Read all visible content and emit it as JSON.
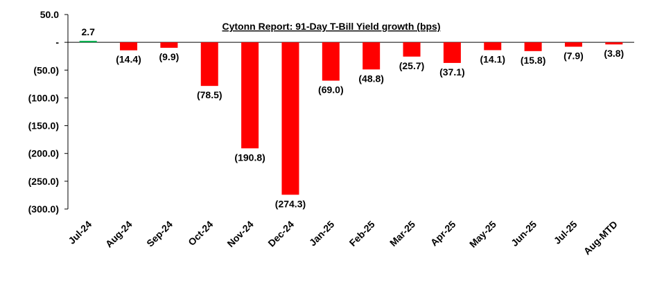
{
  "chart_data": {
    "type": "bar",
    "title": "Cytonn Report:  91-Day T-Bill Yield growth (bps)",
    "xlabel": "",
    "ylabel": "",
    "ylim": [
      -300,
      50
    ],
    "yticks": [
      50,
      0,
      -50,
      -100,
      -150,
      -200,
      -250,
      -300
    ],
    "ytick_labels": [
      "50.0",
      "-",
      "(50.0)",
      "(100.0)",
      "(150.0)",
      "(200.0)",
      "(250.0)",
      "(300.0)"
    ],
    "categories": [
      "Jul-24",
      "Aug-24",
      "Sep-24",
      "Oct-24",
      "Nov-24",
      "Dec-24",
      "Jan-25",
      "Feb-25",
      "Mar-25",
      "Apr-25",
      "May-25",
      "Jun-25",
      "Jul-25",
      "Aug-MTD"
    ],
    "values": [
      2.7,
      -14.4,
      -9.9,
      -78.5,
      -190.8,
      -274.3,
      -69.0,
      -48.8,
      -25.7,
      -37.1,
      -14.1,
      -15.8,
      -7.9,
      -3.8
    ],
    "data_labels": [
      "2.7",
      "(14.4)",
      "(9.9)",
      "(78.5)",
      "(190.8)",
      "(274.3)",
      "(69.0)",
      "(48.8)",
      "(25.7)",
      "(37.1)",
      "(14.1)",
      "(15.8)",
      "(7.9)",
      "(3.8)"
    ],
    "colors": {
      "negative": "#ff0000",
      "positive": "#00b050",
      "axis": "#000000"
    },
    "grid": false,
    "legend": "none"
  }
}
